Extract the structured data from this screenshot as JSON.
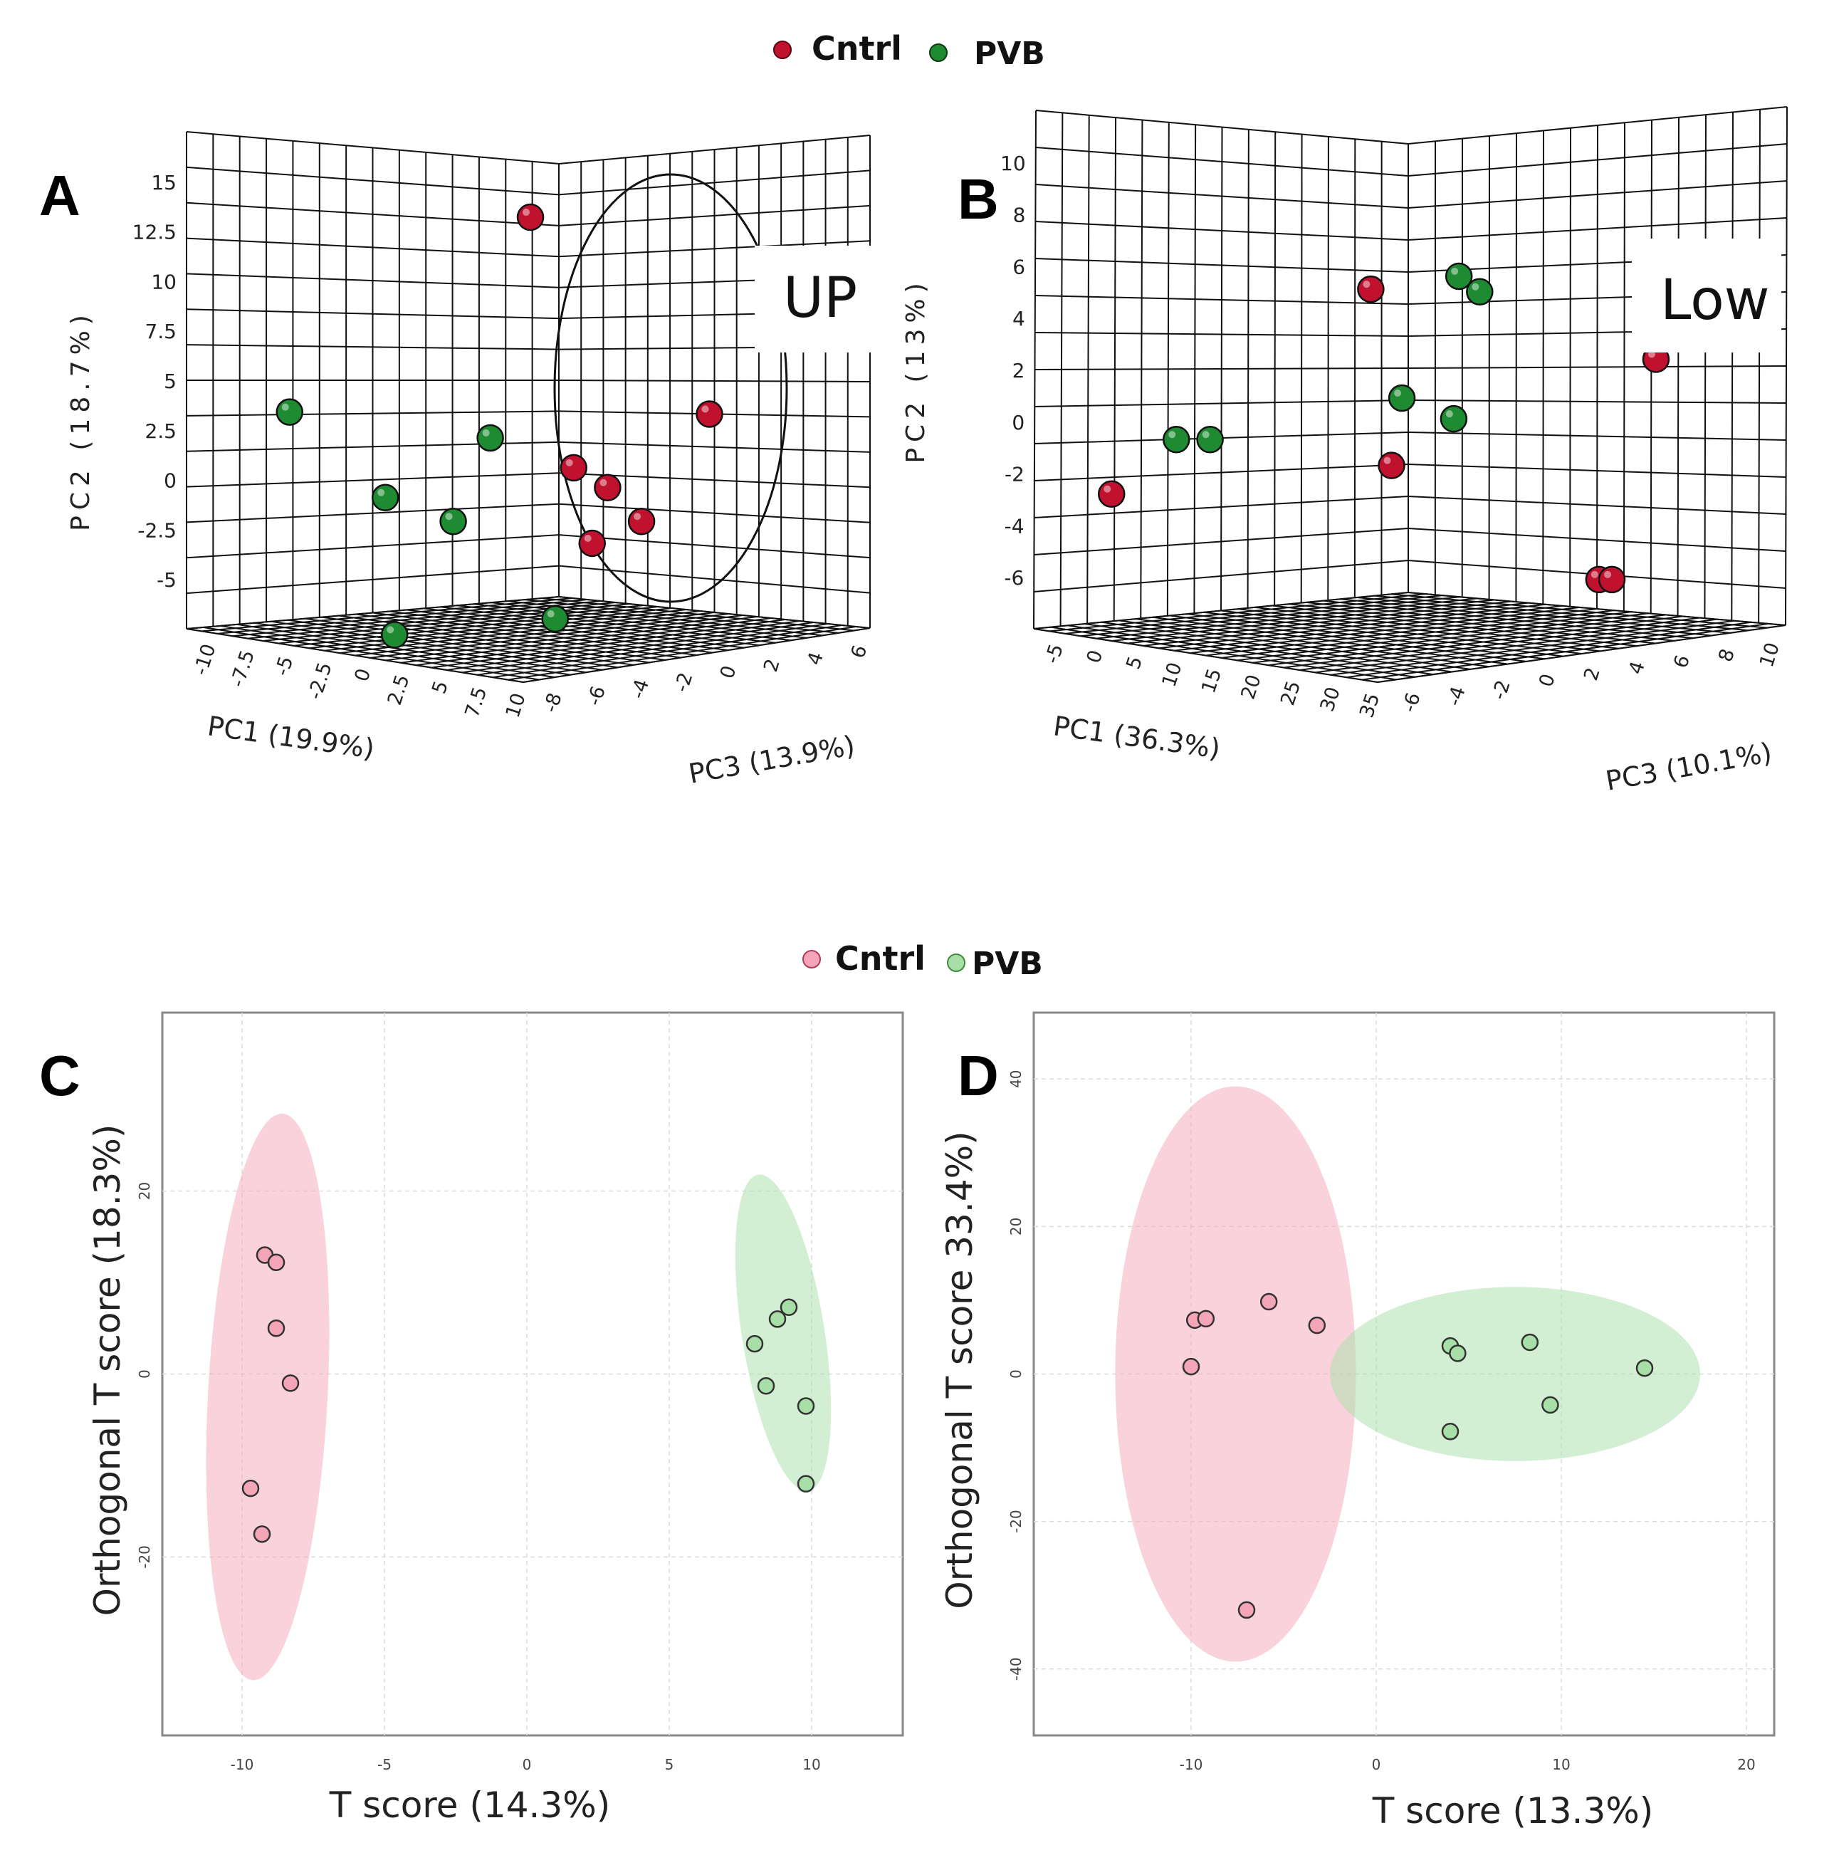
{
  "legend_top": {
    "items": [
      {
        "label": "Cntrl",
        "color": "#c0122f"
      },
      {
        "label": "PVB",
        "color": "#1e8a32"
      }
    ]
  },
  "legend_bottom": {
    "items": [
      {
        "label": "Cntrl",
        "color": "#f4a6b8"
      },
      {
        "label": "PVB",
        "color": "#a8dfa8"
      }
    ]
  },
  "chart_data": [
    {
      "panel": "A",
      "type": "scatter3d",
      "box_label": "UP",
      "xlabel": "PC1 (19.9%)",
      "ylabel": "PC2 (18.7%)",
      "zlabel": "PC3 (13.9%)",
      "xticks": [
        "-10",
        "-7.5",
        "-5",
        "-2.5",
        "0",
        "2.5",
        "5",
        "7.5",
        "10"
      ],
      "yticks": [
        "15",
        "12.5",
        "10",
        "7.5",
        "5",
        "2.5",
        "0",
        "-2.5",
        "-5"
      ],
      "zticks": [
        "-8",
        "-6",
        "-4",
        "-2",
        "0",
        "2",
        "4",
        "6"
      ],
      "ylim": [
        -7.5,
        17.5
      ],
      "series": [
        {
          "name": "Cntrl",
          "color": "#c0122f",
          "points": [
            [
              1,
              13.2
            ],
            [
              2.4,
              0.6
            ],
            [
              3.5,
              -0.4
            ],
            [
              4.6,
              -2.1
            ],
            [
              3.0,
              -3.2
            ],
            [
              6.8,
              3.3
            ]
          ]
        },
        {
          "name": "PVB",
          "color": "#1e8a32",
          "points": [
            [
              -6.8,
              3.4
            ],
            [
              -0.3,
              2.1
            ],
            [
              -3.7,
              -0.9
            ],
            [
              -1.5,
              -2.1
            ],
            [
              1.8,
              -7.0
            ],
            [
              -3.4,
              -7.8
            ]
          ]
        }
      ]
    },
    {
      "panel": "B",
      "type": "scatter3d",
      "box_label": "Low",
      "xlabel": "PC1 (36.3%)",
      "ylabel": "PC2 (13%)",
      "zlabel": "PC3 (10.1%)",
      "xticks": [
        "-5",
        "0",
        "5",
        "10",
        "15",
        "20",
        "25",
        "30",
        "35"
      ],
      "yticks": [
        "10",
        "8",
        "6",
        "4",
        "2",
        "0",
        "-2",
        "-4",
        "-6"
      ],
      "zticks": [
        "-6",
        "-4",
        "-2",
        "0",
        "2",
        "4",
        "6",
        "8",
        "10"
      ],
      "ylim": [
        -8,
        12
      ],
      "series": [
        {
          "name": "Cntrl",
          "color": "#c0122f",
          "points": [
            [
              -12,
              -2.8
            ],
            [
              -2,
              5.1
            ],
            [
              9,
              2.4
            ],
            [
              -1.2,
              -1.7
            ],
            [
              6.8,
              -6.1
            ],
            [
              7.3,
              -6.1
            ]
          ]
        },
        {
          "name": "PVB",
          "color": "#1e8a32",
          "points": [
            [
              -9.5,
              -0.7
            ],
            [
              -8.2,
              -0.7
            ],
            [
              1.4,
              5.6
            ],
            [
              2.2,
              5.0
            ],
            [
              -0.8,
              0.9
            ],
            [
              1.2,
              0.1
            ]
          ]
        }
      ]
    },
    {
      "panel": "C",
      "type": "scatter",
      "xlabel": "T score (14.3%)",
      "ylabel": "Orthogonal T score (18.3%)",
      "xlim": [
        -12.8,
        13.2
      ],
      "ylim": [
        -39.5,
        39.5
      ],
      "xticks": [
        -10,
        -5,
        0,
        5,
        10
      ],
      "yticks": [
        -20,
        0,
        20
      ],
      "series": [
        {
          "name": "Cntrl",
          "color": "#f4a6b8",
          "stroke": "#b23a56",
          "points": [
            [
              -9.2,
              13
            ],
            [
              -8.8,
              12.2
            ],
            [
              -8.8,
              5
            ],
            [
              -8.3,
              -1
            ],
            [
              -9.7,
              -12.5
            ],
            [
              -9.3,
              -17.5
            ]
          ],
          "ellipse": {
            "cx": -9.1,
            "cy": -2.5,
            "rx": 2.1,
            "ry": 31,
            "angle": 3
          }
        },
        {
          "name": "PVB",
          "color": "#a8dfa8",
          "stroke": "#3f8a3f",
          "points": [
            [
              9.2,
              7.3
            ],
            [
              8.8,
              6
            ],
            [
              8.0,
              3.3
            ],
            [
              8.4,
              -1.3
            ],
            [
              9.8,
              -3.5
            ],
            [
              9.8,
              -12
            ]
          ],
          "ellipse": {
            "cx": 9.0,
            "cy": 4.5,
            "rx": 1.45,
            "ry": 17.5,
            "angle": -9
          }
        }
      ]
    },
    {
      "panel": "D",
      "type": "scatter",
      "xlabel": "T score (13.3%)",
      "ylabel": "Orthogonal T score 33.4%)",
      "xlim": [
        -18.5,
        21.5
      ],
      "ylim": [
        -49,
        49
      ],
      "xticks": [
        -10,
        0,
        10,
        20
      ],
      "yticks": [
        -40,
        -20,
        0,
        20,
        40
      ],
      "series": [
        {
          "name": "Cntrl",
          "color": "#f4a6b8",
          "stroke": "#b23a56",
          "points": [
            [
              -9.8,
              7.3
            ],
            [
              -9.2,
              7.5
            ],
            [
              -5.8,
              9.8
            ],
            [
              -3.2,
              6.6
            ],
            [
              -10,
              1
            ],
            [
              -7,
              -32
            ]
          ],
          "ellipse": {
            "cx": -7.6,
            "cy": 0,
            "rx": 6.5,
            "ry": 39,
            "angle": 0
          }
        },
        {
          "name": "PVB",
          "color": "#a8dfa8",
          "stroke": "#3f8a3f",
          "points": [
            [
              4,
              3.8
            ],
            [
              4.4,
              2.8
            ],
            [
              8.3,
              4.3
            ],
            [
              14.5,
              0.8
            ],
            [
              9.4,
              -4.2
            ],
            [
              4,
              -7.8
            ]
          ],
          "ellipse": {
            "cx": 7.5,
            "cy": 0,
            "rx": 10,
            "ry": 11.8,
            "angle": 0
          }
        }
      ]
    }
  ]
}
